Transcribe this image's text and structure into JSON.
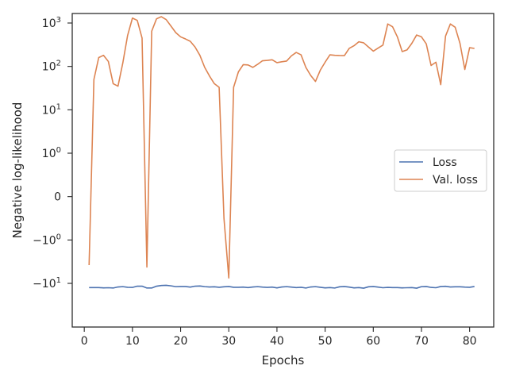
{
  "chart_data": {
    "type": "line",
    "xlabel": "Epochs",
    "ylabel": "Negative log-likelihood",
    "xlim": [
      -2.5,
      85
    ],
    "x_ticks": [
      0,
      10,
      20,
      30,
      40,
      50,
      60,
      70,
      80
    ],
    "y_scale": "symlog",
    "y_ticks": [
      {
        "value": 1000,
        "base": "10",
        "exp": "3"
      },
      {
        "value": 100,
        "base": "10",
        "exp": "2"
      },
      {
        "value": 10,
        "base": "10",
        "exp": "1"
      },
      {
        "value": 1,
        "base": "10",
        "exp": "0"
      },
      {
        "value": 0,
        "base": "0",
        "exp": ""
      },
      {
        "value": -1,
        "base": "−10",
        "exp": "0"
      },
      {
        "value": -10,
        "base": "−10",
        "exp": "1"
      }
    ],
    "legend": {
      "position": "center-right"
    },
    "grid": false,
    "series": [
      {
        "name": "Loss",
        "color": "#4c72b0",
        "x": [
          1,
          2,
          3,
          4,
          5,
          6,
          7,
          8,
          9,
          10,
          11,
          12,
          13,
          14,
          15,
          16,
          17,
          18,
          19,
          20,
          21,
          22,
          23,
          24,
          25,
          26,
          27,
          28,
          29,
          30,
          31,
          32,
          33,
          34,
          35,
          36,
          37,
          38,
          39,
          40,
          41,
          42,
          43,
          44,
          45,
          46,
          47,
          48,
          49,
          50,
          51,
          52,
          53,
          54,
          55,
          56,
          57,
          58,
          59,
          60,
          61,
          62,
          63,
          64,
          65,
          66,
          67,
          68,
          69,
          70,
          71,
          72,
          73,
          74,
          75,
          76,
          77,
          78,
          79,
          80,
          81
        ],
        "y": [
          -12.5,
          -12.5,
          -12.5,
          -12.7,
          -12.6,
          -12.8,
          -12.1,
          -11.9,
          -12.3,
          -12.4,
          -11.6,
          -11.6,
          -12.8,
          -12.8,
          -11.6,
          -11.2,
          -11.1,
          -11.4,
          -11.9,
          -11.8,
          -11.8,
          -12.2,
          -11.6,
          -11.5,
          -11.9,
          -12.1,
          -12.0,
          -12.3,
          -12.0,
          -11.8,
          -12.3,
          -12.3,
          -12.2,
          -12.5,
          -12.1,
          -11.9,
          -12.2,
          -12.4,
          -12.2,
          -12.7,
          -12.1,
          -11.9,
          -12.2,
          -12.5,
          -12.3,
          -12.8,
          -12.1,
          -11.9,
          -12.3,
          -12.7,
          -12.5,
          -12.8,
          -12.0,
          -11.8,
          -12.2,
          -12.7,
          -12.5,
          -12.9,
          -12.0,
          -11.8,
          -12.2,
          -12.6,
          -12.4,
          -12.5,
          -12.5,
          -12.7,
          -12.6,
          -12.5,
          -12.9,
          -11.9,
          -11.8,
          -12.4,
          -12.6,
          -11.8,
          -11.7,
          -12.1,
          -12.0,
          -12.0,
          -12.2,
          -12.3,
          -11.8
        ]
      },
      {
        "name": "Val. loss",
        "color": "#dd8452",
        "x": [
          1,
          2,
          3,
          4,
          5,
          6,
          7,
          8,
          9,
          10,
          11,
          12,
          13,
          14,
          15,
          16,
          17,
          18,
          19,
          20,
          21,
          22,
          23,
          24,
          25,
          26,
          27,
          28,
          29,
          30,
          31,
          32,
          33,
          34,
          35,
          36,
          37,
          38,
          39,
          40,
          41,
          42,
          43,
          44,
          45,
          46,
          47,
          48,
          49,
          50,
          51,
          52,
          53,
          54,
          55,
          56,
          57,
          58,
          59,
          60,
          61,
          62,
          63,
          64,
          65,
          66,
          67,
          68,
          69,
          70,
          71,
          72,
          73,
          74,
          75,
          76,
          77,
          78,
          79,
          80,
          81
        ],
        "y": [
          -3.8,
          50,
          160,
          180,
          130,
          40,
          35,
          120,
          520,
          1300,
          1150,
          450,
          -4.2,
          650,
          1250,
          1400,
          1200,
          850,
          600,
          480,
          430,
          380,
          280,
          180,
          95,
          60,
          40,
          33,
          -0.5,
          -7.5,
          33,
          75,
          110,
          108,
          95,
          112,
          135,
          138,
          142,
          122,
          128,
          133,
          175,
          210,
          185,
          95,
          62,
          45,
          82,
          125,
          185,
          180,
          178,
          177,
          260,
          300,
          370,
          350,
          280,
          225,
          265,
          310,
          950,
          820,
          480,
          220,
          240,
          340,
          530,
          480,
          330,
          105,
          125,
          38,
          500,
          950,
          800,
          340,
          85,
          270,
          260
        ]
      }
    ]
  }
}
